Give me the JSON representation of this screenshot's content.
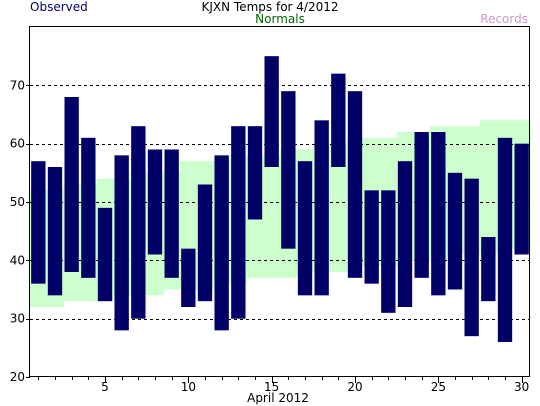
{
  "header": {
    "title": "KJXN Temps for 4/2012",
    "legend_observed": "Observed",
    "legend_normals": "Normals",
    "legend_records": "Records"
  },
  "colors": {
    "observed": "#000066",
    "normals_band": "#ccffcc",
    "normals_text": "#006600",
    "records_text": "#cc99cc",
    "gridline": "#000000"
  },
  "chart_data": {
    "type": "bar",
    "title": "KJXN Temps for 4/2012",
    "xlabel": "April 2012",
    "ylabel": "",
    "xlim": [
      1,
      30
    ],
    "ylim": [
      20,
      80
    ],
    "x_ticks": [
      5,
      10,
      15,
      20,
      25,
      30
    ],
    "y_ticks": [
      20,
      30,
      40,
      50,
      60,
      70
    ],
    "grid": {
      "horizontal_dashed": [
        30,
        40,
        50,
        60,
        70
      ]
    },
    "legend_position": "top",
    "days": [
      1,
      2,
      3,
      4,
      5,
      6,
      7,
      8,
      9,
      10,
      11,
      12,
      13,
      14,
      15,
      16,
      17,
      18,
      19,
      20,
      21,
      22,
      23,
      24,
      25,
      26,
      27,
      28,
      29,
      30
    ],
    "series": [
      {
        "name": "Observed",
        "high": [
          57,
          56,
          68,
          61,
          49,
          58,
          63,
          59,
          59,
          42,
          53,
          58,
          63,
          63,
          75,
          69,
          57,
          64,
          72,
          69,
          52,
          52,
          57,
          62,
          62,
          55,
          54,
          44,
          61,
          60
        ],
        "low": [
          36,
          34,
          38,
          37,
          33,
          28,
          30,
          41,
          37,
          32,
          33,
          28,
          30,
          47,
          56,
          42,
          34,
          34,
          56,
          37,
          36,
          31,
          32,
          37,
          34,
          35,
          27,
          33,
          26,
          41
        ]
      },
      {
        "name": "Normals",
        "high": [
          52,
          52,
          53,
          53,
          54,
          54,
          55,
          55,
          55,
          57,
          57,
          57,
          58,
          58,
          58,
          59,
          59,
          60,
          60,
          61,
          61,
          61,
          62,
          62,
          63,
          63,
          63,
          64,
          64,
          64
        ],
        "low": [
          32,
          32,
          33,
          33,
          33,
          34,
          34,
          34,
          35,
          35,
          35,
          36,
          36,
          37,
          37,
          37,
          38,
          38,
          38,
          39,
          39,
          39,
          40,
          40,
          40,
          41,
          41,
          41,
          42,
          42
        ]
      }
    ]
  }
}
